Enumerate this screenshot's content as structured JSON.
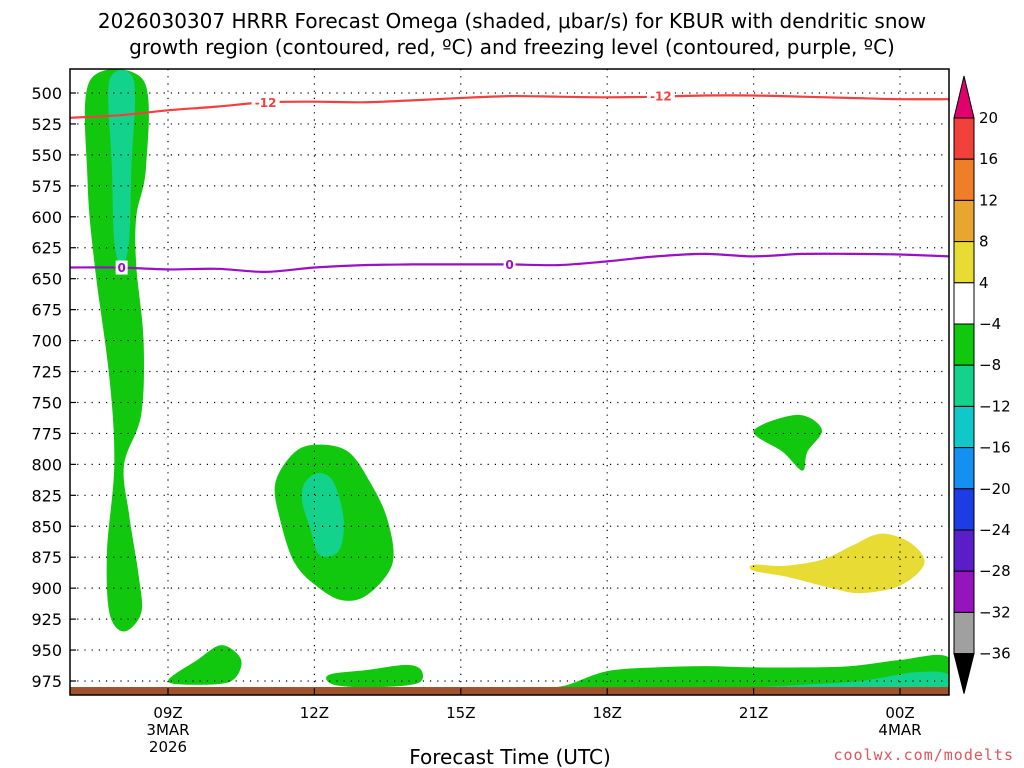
{
  "chart_data": {
    "type": "contour",
    "title_line1": "2026030307 HRRR Forecast Omega (shaded, μbar/s) for KBUR with dendritic snow",
    "title_line2": "growth region (contoured, red, ºC) and freezing level (contoured, purple, ºC)",
    "xlabel": "Forecast Time (UTC)",
    "credit": "coolwx.com/modelts",
    "x_ticks": [
      {
        "t": 9,
        "label": "09Z",
        "sub1": "3MAR",
        "sub2": "2026"
      },
      {
        "t": 12,
        "label": "12Z",
        "sub1": "",
        "sub2": ""
      },
      {
        "t": 15,
        "label": "15Z",
        "sub1": "",
        "sub2": ""
      },
      {
        "t": 18,
        "label": "18Z",
        "sub1": "",
        "sub2": ""
      },
      {
        "t": 21,
        "label": "21Z",
        "sub1": "",
        "sub2": ""
      },
      {
        "t": 24,
        "label": "00Z",
        "sub1": "4MAR",
        "sub2": ""
      }
    ],
    "x_range_hours": [
      7,
      25
    ],
    "y_range_hPa": [
      490,
      990
    ],
    "y_ticks": [
      500,
      525,
      550,
      575,
      600,
      625,
      650,
      675,
      700,
      725,
      750,
      775,
      800,
      825,
      850,
      875,
      900,
      925,
      950,
      975
    ],
    "grid": true,
    "colorbar": {
      "units": "μbar/s",
      "levels": [
        "20",
        "16",
        "12",
        "8",
        "4",
        "−4",
        "−8",
        "−12",
        "−16",
        "−20",
        "−24",
        "−28",
        "−32",
        "−36"
      ],
      "colors": [
        "#e0006e",
        "#f2413b",
        "#f07d28",
        "#e6a630",
        "#e8dc34",
        "#ffffff",
        "#12c80f",
        "#12d28c",
        "#10c8c8",
        "#1490f0",
        "#1e3ce6",
        "#5a1ec8",
        "#9614be",
        "#a0a0a0",
        "#000000"
      ]
    },
    "contours": [
      {
        "name": "dendritic snow growth (-12 °C)",
        "level_label": "-12",
        "color": "#f24040",
        "points": [
          [
            7,
            520
          ],
          [
            8,
            518
          ],
          [
            9,
            514
          ],
          [
            10,
            511
          ],
          [
            11,
            507.5
          ],
          [
            12,
            507
          ],
          [
            13,
            507.5
          ],
          [
            14,
            506
          ],
          [
            15,
            504
          ],
          [
            16,
            502.5
          ],
          [
            17,
            503
          ],
          [
            18,
            503.5
          ],
          [
            19,
            503
          ],
          [
            20,
            502
          ],
          [
            21,
            502
          ],
          [
            22,
            503
          ],
          [
            23,
            504
          ],
          [
            24,
            505
          ],
          [
            25,
            505
          ]
        ],
        "label_at": [
          [
            11,
            507.5
          ],
          [
            19.1,
            502.5
          ]
        ]
      },
      {
        "name": "freezing level (0 °C)",
        "level_label": "0",
        "color": "#9a10c8",
        "points": [
          [
            7,
            641
          ],
          [
            8,
            641
          ],
          [
            9,
            642.5
          ],
          [
            10,
            642
          ],
          [
            11,
            644.5
          ],
          [
            12,
            641
          ],
          [
            13,
            639
          ],
          [
            14,
            638.5
          ],
          [
            15,
            638.5
          ],
          [
            16,
            638.5
          ],
          [
            17,
            639
          ],
          [
            18,
            636
          ],
          [
            19,
            632
          ],
          [
            20,
            630
          ],
          [
            21,
            632
          ],
          [
            22,
            630
          ],
          [
            23,
            630
          ],
          [
            24,
            630.5
          ],
          [
            25,
            632
          ]
        ],
        "label_at": [
          [
            8.05,
            641
          ],
          [
            16,
            638.5
          ]
        ]
      }
    ],
    "shaded_regions": [
      {
        "name": "omega ≤ -4 column near 08Z",
        "omega": -4,
        "color": "#12c80f",
        "points": [
          [
            7.4,
            490
          ],
          [
            8.5,
            490
          ],
          [
            8.55,
            560
          ],
          [
            8.35,
            600
          ],
          [
            8.35,
            640
          ],
          [
            8.5,
            700
          ],
          [
            8.45,
            760
          ],
          [
            8.1,
            800
          ],
          [
            8.2,
            840
          ],
          [
            8.4,
            890
          ],
          [
            8.45,
            920
          ],
          [
            8.1,
            935
          ],
          [
            7.8,
            920
          ],
          [
            7.75,
            870
          ],
          [
            7.9,
            800
          ],
          [
            7.8,
            730
          ],
          [
            7.5,
            640
          ],
          [
            7.35,
            570
          ],
          [
            7.4,
            490
          ]
        ]
      },
      {
        "name": "omega ≤ -8 core near 08Z",
        "omega": -8,
        "color": "#12d28c",
        "points": [
          [
            7.8,
            490
          ],
          [
            8.3,
            490
          ],
          [
            8.25,
            560
          ],
          [
            8.2,
            620
          ],
          [
            8.05,
            640
          ],
          [
            7.9,
            620
          ],
          [
            7.85,
            560
          ],
          [
            7.8,
            490
          ]
        ]
      },
      {
        "name": "omega ≤ -4 region 11Z–13Z",
        "omega": -4,
        "color": "#12c80f",
        "points": [
          [
            11.2,
            815
          ],
          [
            11.6,
            790
          ],
          [
            12.1,
            784
          ],
          [
            12.7,
            790
          ],
          [
            13.15,
            815
          ],
          [
            13.5,
            845
          ],
          [
            13.6,
            880
          ],
          [
            13.1,
            905
          ],
          [
            12.6,
            910
          ],
          [
            12.1,
            900
          ],
          [
            11.6,
            880
          ],
          [
            11.3,
            845
          ],
          [
            11.2,
            815
          ]
        ]
      },
      {
        "name": "omega ≤ -8 core 12Z",
        "omega": -8,
        "color": "#12d28c",
        "points": [
          [
            11.8,
            815
          ],
          [
            12.1,
            807
          ],
          [
            12.4,
            815
          ],
          [
            12.6,
            845
          ],
          [
            12.5,
            870
          ],
          [
            12.1,
            873
          ],
          [
            11.9,
            850
          ],
          [
            11.75,
            830
          ],
          [
            11.8,
            815
          ]
        ]
      },
      {
        "name": "omega ≤ -4 patch near 10Z low level",
        "omega": -4,
        "color": "#12c80f",
        "points": [
          [
            9,
            975
          ],
          [
            9.6,
            958
          ],
          [
            10.1,
            946
          ],
          [
            10.5,
            958
          ],
          [
            10.3,
            975
          ],
          [
            9.6,
            978
          ],
          [
            9,
            975
          ]
        ]
      },
      {
        "name": "omega ≤ -4 patch near 13Z low level",
        "omega": -4,
        "color": "#12c80f",
        "points": [
          [
            12.3,
            970
          ],
          [
            13.1,
            966
          ],
          [
            13.9,
            962
          ],
          [
            14.2,
            967
          ],
          [
            14.1,
            977
          ],
          [
            13.2,
            980
          ],
          [
            12.4,
            978
          ],
          [
            12.3,
            970
          ]
        ]
      },
      {
        "name": "omega ≤ -4 surface band 16Z–00Z",
        "omega": -4,
        "color": "#12c80f",
        "points": [
          [
            16.2,
            990
          ],
          [
            17.2,
            978
          ],
          [
            18,
            967
          ],
          [
            19,
            964
          ],
          [
            20,
            963
          ],
          [
            21,
            964
          ],
          [
            22,
            964
          ],
          [
            23,
            963
          ],
          [
            24,
            958
          ],
          [
            25,
            956
          ],
          [
            25,
            990
          ],
          [
            16.2,
            990
          ]
        ]
      },
      {
        "name": "omega ≤ -8 surface band 20Z–00Z",
        "omega": -8,
        "color": "#12d28c",
        "points": [
          [
            19.5,
            990
          ],
          [
            20.5,
            982
          ],
          [
            22,
            978
          ],
          [
            23.2,
            975
          ],
          [
            24.3,
            968
          ],
          [
            25,
            970
          ],
          [
            25,
            990
          ],
          [
            19.5,
            990
          ]
        ]
      },
      {
        "name": "omega ≤ -4 region 21Z–22Z",
        "omega": -4,
        "color": "#12c80f",
        "points": [
          [
            21,
            773
          ],
          [
            21.9,
            760
          ],
          [
            22.4,
            772
          ],
          [
            22.1,
            790
          ],
          [
            22.0,
            805
          ],
          [
            21.6,
            790
          ],
          [
            21,
            773
          ]
        ]
      },
      {
        "name": "omega ≥ 4 region 21Z–00Z",
        "omega": 4,
        "color": "#e8dc34",
        "points": [
          [
            21,
            881
          ],
          [
            21.6,
            882
          ],
          [
            22.4,
            877
          ],
          [
            23,
            866
          ],
          [
            23.6,
            856
          ],
          [
            24.2,
            863
          ],
          [
            24.5,
            880
          ],
          [
            24,
            898
          ],
          [
            23.2,
            904
          ],
          [
            22.6,
            900
          ],
          [
            21.7,
            891
          ],
          [
            21,
            886
          ],
          [
            21,
            881
          ]
        ]
      },
      {
        "name": "omega ≥ 4 sliver near 20Z surface",
        "omega": 4,
        "color": "#e8dc34",
        "points": [
          [
            20.1,
            990
          ],
          [
            20.5,
            987
          ],
          [
            21,
            986
          ],
          [
            21.1,
            990
          ],
          [
            20.1,
            990
          ]
        ]
      }
    ],
    "terrain_top_hPa": 985
  }
}
